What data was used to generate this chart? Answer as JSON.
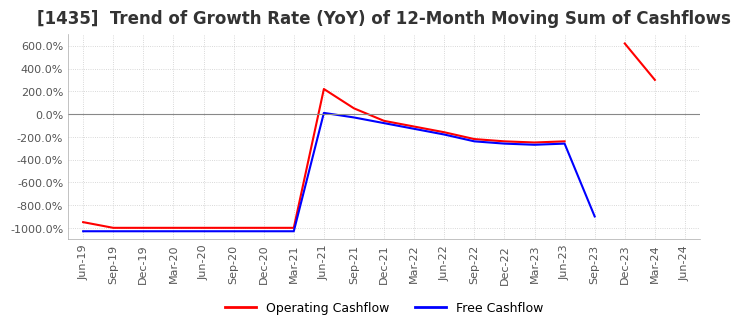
{
  "title": "[1435]  Trend of Growth Rate (YoY) of 12-Month Moving Sum of Cashflows",
  "title_fontsize": 12,
  "ylim": [
    -1100,
    700
  ],
  "yticks": [
    -1000,
    -800,
    -600,
    -400,
    -200,
    0,
    200,
    400,
    600
  ],
  "background_color": "#ffffff",
  "grid_color": "#cccccc",
  "legend_labels": [
    "Operating Cashflow",
    "Free Cashflow"
  ],
  "legend_colors": [
    "red",
    "blue"
  ],
  "x_labels": [
    "Jun-19",
    "Sep-19",
    "Dec-19",
    "Mar-20",
    "Jun-20",
    "Sep-20",
    "Dec-20",
    "Mar-21",
    "Jun-21",
    "Sep-21",
    "Dec-21",
    "Mar-22",
    "Jun-22",
    "Sep-22",
    "Dec-22",
    "Mar-23",
    "Jun-23",
    "Sep-23",
    "Dec-23",
    "Mar-24",
    "Jun-24"
  ],
  "operating_cashflow": [
    -950,
    -1000,
    -1000,
    -1000,
    -1000,
    -1000,
    -1000,
    -1000,
    220,
    50,
    -60,
    -110,
    -160,
    -220,
    -240,
    -250,
    -240,
    null,
    620,
    300,
    null
  ],
  "free_cashflow": [
    -1030,
    -1030,
    -1030,
    -1030,
    -1030,
    -1030,
    -1030,
    -1030,
    10,
    -30,
    -80,
    -130,
    -180,
    -240,
    -260,
    -270,
    -260,
    -900,
    null,
    null,
    null
  ]
}
